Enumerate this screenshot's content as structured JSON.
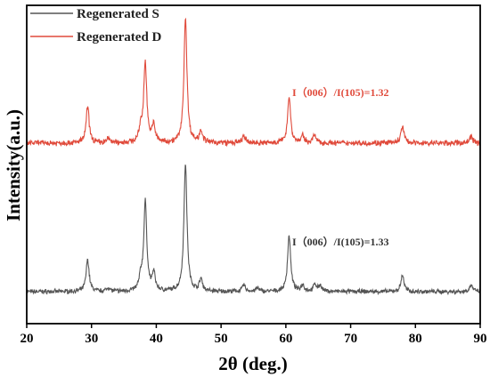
{
  "chart_data": {
    "type": "line",
    "title": "",
    "xlabel": "2θ (deg.)",
    "ylabel": "Intensity(a.u.)",
    "xlim": [
      20,
      90
    ],
    "x_ticks": [
      20,
      30,
      40,
      50,
      60,
      70,
      80,
      90
    ],
    "y_ticks_shown": false,
    "grid": false,
    "legend_position": "top-left",
    "series": [
      {
        "name": "Regenerated S",
        "color": "#555555",
        "baseline": 0.2,
        "noise": 0.08,
        "peaks": [
          {
            "x": 29.4,
            "h": 1.45
          },
          {
            "x": 32.6,
            "h": 0.18
          },
          {
            "x": 37.6,
            "h": 0.55
          },
          {
            "x": 38.3,
            "h": 4.0
          },
          {
            "x": 39.6,
            "h": 0.8
          },
          {
            "x": 44.5,
            "h": 5.8
          },
          {
            "x": 46.9,
            "h": 0.55
          },
          {
            "x": 53.5,
            "h": 0.3
          },
          {
            "x": 55.6,
            "h": 0.15
          },
          {
            "x": 60.5,
            "h": 2.55
          },
          {
            "x": 62.6,
            "h": 0.3
          },
          {
            "x": 64.5,
            "h": 0.32
          },
          {
            "x": 65.3,
            "h": 0.28
          },
          {
            "x": 78.0,
            "h": 0.75
          },
          {
            "x": 88.6,
            "h": 0.3
          }
        ]
      },
      {
        "name": "Regenerated D",
        "color": "#e04a3b",
        "baseline": 0.2,
        "noise": 0.1,
        "peaks": [
          {
            "x": 29.4,
            "h": 1.6
          },
          {
            "x": 32.6,
            "h": 0.2
          },
          {
            "x": 37.6,
            "h": 0.6
          },
          {
            "x": 38.3,
            "h": 3.55
          },
          {
            "x": 39.6,
            "h": 0.75
          },
          {
            "x": 44.5,
            "h": 5.55
          },
          {
            "x": 46.9,
            "h": 0.55
          },
          {
            "x": 53.5,
            "h": 0.3
          },
          {
            "x": 60.5,
            "h": 2.05
          },
          {
            "x": 62.6,
            "h": 0.3
          },
          {
            "x": 64.4,
            "h": 0.35
          },
          {
            "x": 78.0,
            "h": 0.75
          },
          {
            "x": 88.6,
            "h": 0.3
          }
        ]
      }
    ],
    "annotations": [
      {
        "text": "I（006）/I(105)=1.32",
        "series": "Regenerated D",
        "color": "#e04a3b"
      },
      {
        "text": "I（006）/I(105)=1.33",
        "series": "Regenerated S",
        "color": "#333333"
      }
    ]
  }
}
